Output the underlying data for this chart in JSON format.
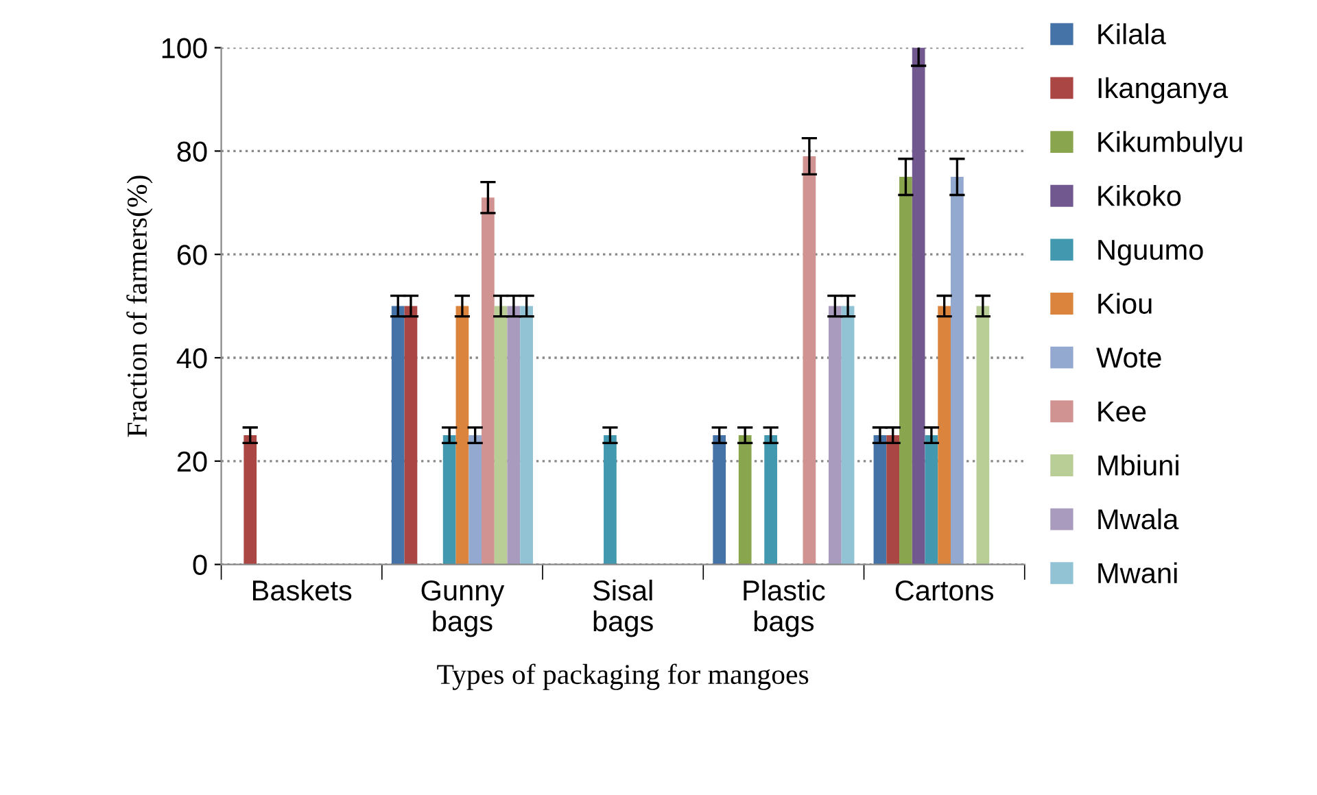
{
  "chart_data": {
    "type": "bar",
    "xlabel": "Types of packaging for mangoes",
    "ylabel": "Fraction of farmers(%)",
    "categories": [
      "Baskets",
      "Gunny\nbags",
      "Sisal\nbags",
      "Plastic\nbags",
      "Cartons"
    ],
    "series": [
      {
        "name": "Kilala",
        "color": "#4572a7",
        "values": [
          0,
          50,
          0,
          25,
          25
        ],
        "errors": [
          null,
          2,
          null,
          1.5,
          1.5
        ]
      },
      {
        "name": "Ikanganya",
        "color": "#aa4643",
        "values": [
          25,
          50,
          0,
          0,
          25
        ],
        "errors": [
          1.5,
          2,
          null,
          null,
          1.5
        ]
      },
      {
        "name": "Kikumbulyu",
        "color": "#89a54e",
        "values": [
          0,
          0,
          0,
          25,
          75
        ],
        "errors": [
          null,
          null,
          null,
          1.5,
          3.5
        ]
      },
      {
        "name": "Kikoko",
        "color": "#71588f",
        "values": [
          0,
          0,
          0,
          0,
          100
        ],
        "errors": [
          null,
          null,
          null,
          null,
          3.5
        ]
      },
      {
        "name": "Nguumo",
        "color": "#4198af",
        "values": [
          0,
          25,
          25,
          25,
          25
        ],
        "errors": [
          null,
          1.5,
          1.5,
          1.5,
          1.5
        ]
      },
      {
        "name": "Kiou",
        "color": "#db843d",
        "values": [
          0,
          50,
          0,
          0,
          50
        ],
        "errors": [
          null,
          2,
          null,
          null,
          2
        ]
      },
      {
        "name": "Wote",
        "color": "#93a9cf",
        "values": [
          0,
          25,
          0,
          0,
          75
        ],
        "errors": [
          null,
          1.5,
          null,
          null,
          3.5
        ]
      },
      {
        "name": "Kee",
        "color": "#d19392",
        "values": [
          0,
          71,
          0,
          79,
          0
        ],
        "errors": [
          null,
          3,
          null,
          3.5,
          null
        ]
      },
      {
        "name": "Mbiuni",
        "color": "#b9cd96",
        "values": [
          0,
          50,
          0,
          0,
          50
        ],
        "errors": [
          null,
          2,
          null,
          null,
          2
        ]
      },
      {
        "name": "Mwala",
        "color": "#a99bbd",
        "values": [
          0,
          50,
          0,
          50,
          0
        ],
        "errors": [
          null,
          2,
          null,
          2,
          null
        ]
      },
      {
        "name": "Mwani",
        "color": "#92c3d4",
        "values": [
          0,
          50,
          0,
          50,
          0
        ],
        "errors": [
          null,
          2,
          null,
          2,
          null
        ]
      }
    ],
    "ylim": [
      0,
      100
    ],
    "yticks": [
      0,
      20,
      40,
      60,
      80,
      100
    ],
    "grid": "y",
    "legend": "right"
  }
}
